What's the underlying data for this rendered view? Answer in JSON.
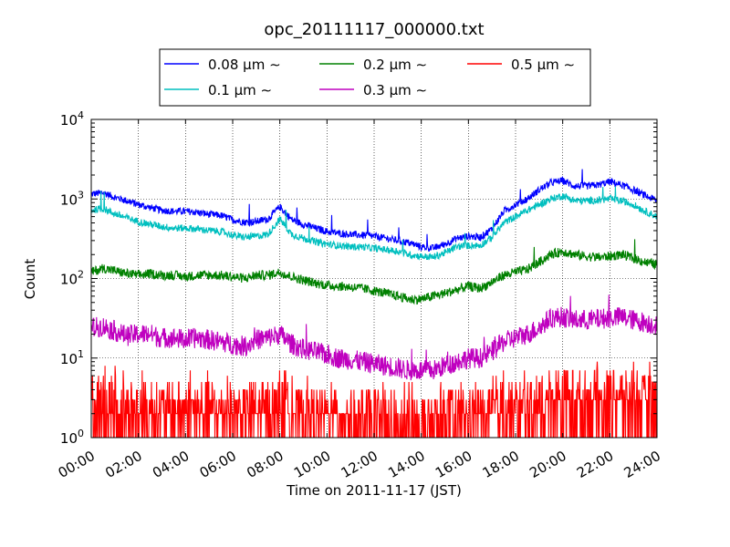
{
  "chart_data": {
    "type": "line",
    "title": "opc_20111117_000000.txt",
    "xlabel": "Time on 2011-11-17 (JST)",
    "ylabel": "Count",
    "x_ticks": [
      "00:00",
      "02:00",
      "04:00",
      "06:00",
      "08:00",
      "10:00",
      "12:00",
      "14:00",
      "16:00",
      "18:00",
      "20:00",
      "22:00",
      "24:00"
    ],
    "y_scale": "log",
    "ylim": [
      1,
      10000
    ],
    "y_ticks": [
      {
        "value": 1,
        "base": "10",
        "exp": "0"
      },
      {
        "value": 10,
        "base": "10",
        "exp": "1"
      },
      {
        "value": 100,
        "base": "10",
        "exp": "2"
      },
      {
        "value": 1000,
        "base": "10",
        "exp": "3"
      },
      {
        "value": 10000,
        "base": "10",
        "exp": "4"
      }
    ],
    "grid": true,
    "legend_position": "top-center, above plot",
    "x_hours": [
      0,
      0.5,
      1,
      1.5,
      2,
      2.5,
      3,
      3.5,
      4,
      4.5,
      5,
      5.5,
      6,
      6.5,
      7,
      7.5,
      8,
      8.5,
      9,
      9.5,
      10,
      10.5,
      11,
      11.5,
      12,
      12.5,
      13,
      13.5,
      14,
      14.5,
      15,
      15.5,
      16,
      16.5,
      17,
      17.5,
      18,
      18.5,
      19,
      19.5,
      20,
      20.5,
      21,
      21.5,
      22,
      22.5,
      23,
      23.5,
      24
    ],
    "series": [
      {
        "name": "0.08 μm ∼",
        "legend_name": "0.08",
        "color": "#0000ff",
        "values": [
          1150,
          1200,
          1050,
          950,
          850,
          780,
          720,
          700,
          700,
          680,
          640,
          620,
          550,
          510,
          520,
          560,
          800,
          550,
          480,
          430,
          390,
          370,
          360,
          350,
          340,
          320,
          300,
          280,
          250,
          240,
          270,
          320,
          340,
          330,
          420,
          700,
          850,
          1000,
          1300,
          1600,
          1700,
          1450,
          1450,
          1500,
          1650,
          1500,
          1300,
          1100,
          950
        ]
      },
      {
        "name": "0.1 μm ∼",
        "legend_name": "0.1",
        "color": "#00bfbf",
        "values": [
          720,
          760,
          650,
          580,
          520,
          480,
          450,
          430,
          430,
          420,
          400,
          390,
          350,
          330,
          340,
          360,
          560,
          360,
          320,
          290,
          270,
          260,
          250,
          250,
          240,
          230,
          220,
          200,
          190,
          185,
          210,
          250,
          260,
          260,
          330,
          500,
          600,
          720,
          850,
          1000,
          1100,
          950,
          950,
          960,
          1000,
          950,
          850,
          700,
          600
        ]
      },
      {
        "name": "0.2 μm ∼",
        "legend_name": "0.2",
        "color": "#008000",
        "values": [
          120,
          135,
          125,
          115,
          110,
          115,
          110,
          110,
          105,
          110,
          110,
          110,
          105,
          100,
          110,
          110,
          120,
          105,
          95,
          88,
          82,
          80,
          78,
          75,
          70,
          65,
          60,
          55,
          55,
          60,
          65,
          72,
          80,
          75,
          90,
          110,
          120,
          130,
          160,
          200,
          220,
          200,
          190,
          185,
          190,
          200,
          180,
          160,
          150
        ]
      },
      {
        "name": "0.3 μm ∼",
        "legend_name": "0.3",
        "color": "#bf00bf",
        "values": [
          24,
          25,
          22,
          19,
          20,
          20,
          18,
          18,
          17,
          18,
          17,
          16,
          15,
          14,
          17,
          18,
          20,
          15,
          13,
          12,
          11,
          10,
          9.5,
          9,
          8.5,
          8,
          7.5,
          7,
          7,
          7,
          8,
          9,
          10,
          10,
          12,
          16,
          18,
          20,
          24,
          32,
          33,
          30,
          30,
          31,
          32,
          33,
          30,
          28,
          26
        ]
      },
      {
        "name": "0.5 μm ∼",
        "legend_name": "0.5",
        "color": "#ff0000",
        "values": [
          2,
          2.2,
          2,
          1.8,
          1.8,
          1.9,
          1.8,
          1.8,
          1.7,
          1.8,
          1.8,
          1.7,
          1.6,
          1.6,
          1.7,
          1.7,
          1.8,
          1.6,
          1.5,
          1.5,
          1.4,
          1.4,
          1.35,
          1.3,
          1.3,
          1.3,
          1.25,
          1.2,
          1.2,
          1.25,
          1.3,
          1.35,
          1.4,
          1.4,
          1.5,
          1.7,
          1.8,
          1.9,
          2.1,
          2.4,
          2.5,
          2.4,
          2.4,
          2.4,
          2.5,
          2.5,
          2.4,
          2.3,
          2.2
        ]
      }
    ]
  }
}
